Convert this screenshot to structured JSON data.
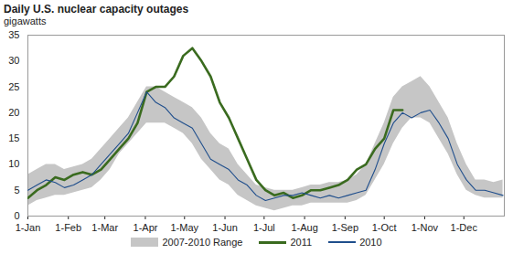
{
  "chart_data": {
    "type": "line",
    "title": "Daily U.S. nuclear capacity outages",
    "subtitle": "gigawatts",
    "x": [
      0,
      7,
      14,
      21,
      28,
      35,
      42,
      49,
      56,
      63,
      70,
      77,
      84,
      91,
      98,
      105,
      112,
      119,
      126,
      133,
      140,
      147,
      154,
      161,
      168,
      175,
      182,
      189,
      196,
      203,
      210,
      217,
      224,
      231,
      238,
      245,
      252,
      259,
      266,
      273,
      280,
      287,
      294,
      301,
      308,
      315,
      322,
      329,
      336,
      343,
      350,
      357,
      364
    ],
    "xlim": [
      0,
      365
    ],
    "xticks": [
      {
        "value": 0,
        "label": "1-Jan"
      },
      {
        "value": 31,
        "label": "1-Feb"
      },
      {
        "value": 59,
        "label": "1-Mar"
      },
      {
        "value": 90,
        "label": "1-Apr"
      },
      {
        "value": 120,
        "label": "1-May"
      },
      {
        "value": 151,
        "label": "1-Jun"
      },
      {
        "value": 181,
        "label": "1-Jul"
      },
      {
        "value": 212,
        "label": "1-Aug"
      },
      {
        "value": 243,
        "label": "1-Sep"
      },
      {
        "value": 273,
        "label": "1-Oct"
      },
      {
        "value": 304,
        "label": "1-Nov"
      },
      {
        "value": 334,
        "label": "1-Dec"
      }
    ],
    "ylim": [
      0,
      35
    ],
    "yticks": [
      0,
      5,
      10,
      15,
      20,
      25,
      30,
      35
    ],
    "grid": false,
    "legend": "bottom",
    "series": [
      {
        "name": "2007-2010 Range",
        "type": "area",
        "color": "#c6c6c6",
        "low": [
          2,
          3,
          3.5,
          4,
          4,
          4.5,
          5,
          5.5,
          7,
          9,
          12,
          14,
          16,
          18,
          18,
          18,
          17,
          16,
          14,
          11,
          9,
          7,
          6,
          4,
          3,
          2,
          1.5,
          1,
          1.5,
          2,
          2,
          2.5,
          2.5,
          2.5,
          2.5,
          2.5,
          3,
          4,
          7,
          10,
          14,
          17,
          19,
          19,
          18,
          15,
          12,
          8,
          5,
          4,
          3.5,
          3.5,
          3.5
        ],
        "high": [
          8,
          9,
          10,
          10,
          9,
          9.5,
          10,
          11,
          13,
          15,
          17,
          19,
          22,
          25,
          25,
          24,
          23,
          22,
          21,
          19,
          16,
          14,
          13,
          10,
          8,
          6,
          5.5,
          5,
          5,
          5,
          5.5,
          6,
          6,
          6.5,
          6.5,
          7,
          8,
          10,
          14,
          18,
          23,
          25,
          26,
          27,
          25,
          22,
          19,
          14,
          10,
          7,
          7,
          6.5,
          7
        ]
      },
      {
        "name": "2011",
        "type": "line",
        "color": "#3a6b1f",
        "values": [
          3.5,
          5,
          6,
          7.5,
          7,
          8,
          8.5,
          8,
          9,
          11,
          13,
          15,
          18,
          24,
          25,
          25,
          27,
          31,
          32.5,
          30,
          27,
          22,
          19,
          15,
          11,
          7,
          5,
          4,
          4.5,
          3.5,
          4,
          5,
          5,
          5.5,
          6,
          7,
          9,
          10,
          13,
          15,
          20.5,
          20.5,
          null,
          null,
          null,
          null,
          null,
          null,
          null,
          null,
          null,
          null,
          null
        ]
      },
      {
        "name": "2010",
        "type": "line",
        "color": "#1f4e8c",
        "values": [
          5,
          6,
          7,
          6.5,
          5.5,
          6,
          7,
          8,
          10,
          12,
          14,
          16,
          20,
          24,
          22,
          21,
          19,
          18,
          17,
          14,
          11,
          10,
          9,
          7,
          6,
          4,
          3,
          3.5,
          4,
          4,
          4.5,
          4,
          3.5,
          4,
          3.5,
          4,
          4.5,
          5,
          9,
          14,
          18,
          20,
          19,
          20,
          20.5,
          18,
          15,
          10,
          7,
          5,
          5,
          4.5,
          4
        ]
      }
    ]
  }
}
